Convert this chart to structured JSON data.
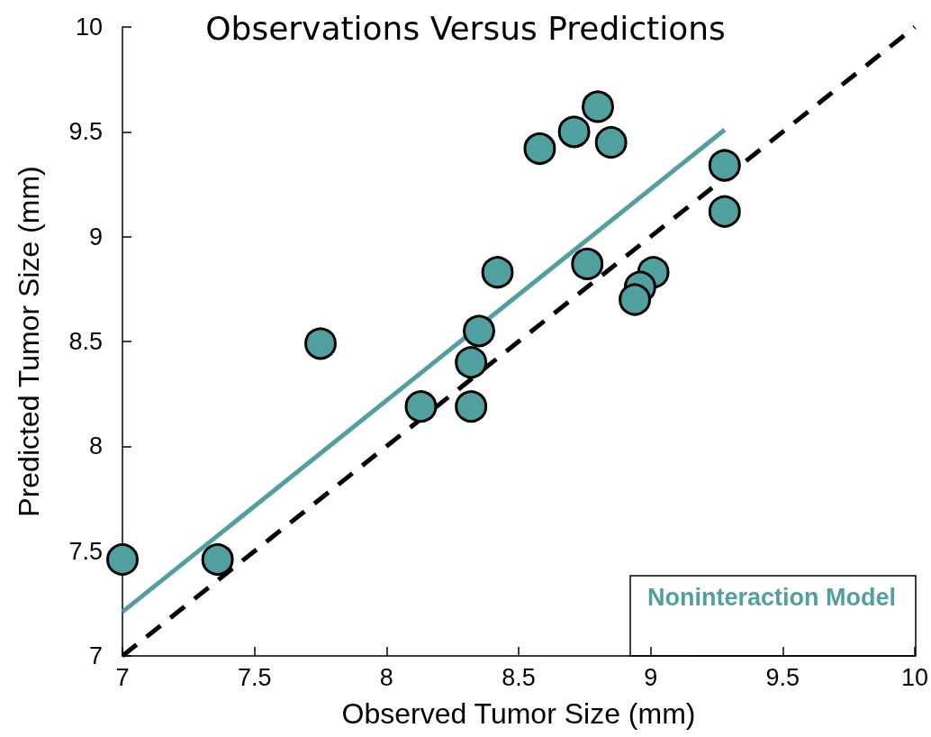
{
  "chart_data": {
    "type": "scatter",
    "title": "Observations Versus Predictions",
    "xlabel": "Observed Tumor Size (mm)",
    "ylabel": "Predicted Tumor Size (mm)",
    "xlim": [
      7,
      10
    ],
    "xticks": [
      7,
      7.5,
      8,
      8.5,
      9,
      9.5,
      10
    ],
    "ylim": [
      7,
      10
    ],
    "yticks": [
      7,
      7.5,
      8,
      8.5,
      9,
      9.5,
      10
    ],
    "grid": false,
    "legend": "bottom right",
    "series": [
      {
        "color": "#50a09f",
        "marker": "circle",
        "x": [
          7.0,
          7.36,
          7.75,
          8.13,
          8.32,
          8.32,
          8.35,
          8.42,
          8.76,
          8.58,
          8.71,
          8.8,
          8.85,
          9.28,
          9.28,
          9.01,
          8.96,
          8.94
        ],
        "values": [
          7.46,
          7.46,
          8.49,
          8.19,
          8.19,
          8.4,
          8.55,
          8.83,
          8.87,
          9.42,
          9.5,
          9.62,
          9.45,
          9.34,
          9.12,
          8.83,
          8.76,
          8.7
        ]
      },
      {
        "type": "line",
        "name": "Noninteraction Model",
        "color": "#50a09f",
        "line_style": "solid",
        "marker": "none",
        "x": [
          7,
          9.28
        ],
        "values": [
          7.21,
          9.51
        ]
      },
      {
        "type": "line",
        "color": "#000000",
        "line_style": "dashed",
        "marker": "none",
        "x": [
          7,
          10
        ],
        "values": [
          7,
          10
        ]
      }
    ]
  }
}
